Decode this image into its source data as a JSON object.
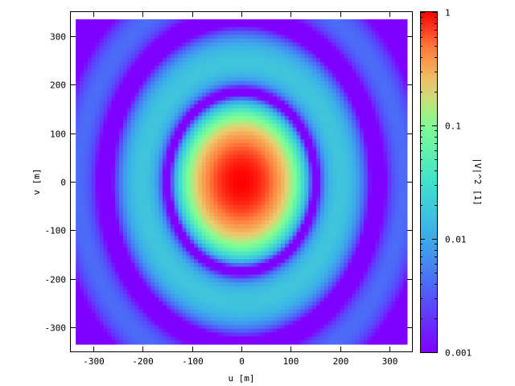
{
  "chart_data": {
    "type": "heatmap",
    "title": "",
    "xlabel": "u [m]",
    "ylabel": "v [m]",
    "colorbar_label": "|V|^2 [1]",
    "xlim": [
      -345,
      345
    ],
    "ylim": [
      -350,
      350
    ],
    "data_extent": {
      "x": [
        -335,
        335
      ],
      "y": [
        -335,
        335
      ]
    },
    "x_ticks": [
      -300,
      -200,
      -100,
      0,
      100,
      200,
      300
    ],
    "y_ticks": [
      -300,
      -200,
      -100,
      0,
      100,
      200,
      300
    ],
    "x_tick_labels": [
      "-300",
      "-200",
      "-100",
      "0",
      "100",
      "200",
      "300"
    ],
    "y_tick_labels": [
      "-300",
      "-200",
      "-100",
      "0",
      "100",
      "200",
      "300"
    ],
    "colorbar": {
      "scale": "log",
      "range": [
        0.001,
        1
      ],
      "ticks": [
        0.001,
        0.01,
        0.1,
        1
      ],
      "tick_labels": [
        "0.001",
        "0.01",
        "0.1",
        "1"
      ],
      "colormap": "rainbow (violet to red)"
    },
    "features": {
      "shape": "elliptical rings centered at origin",
      "central_peak_value": 1,
      "semi_axis_x_first_null": 150,
      "semi_axis_y_first_null": 185,
      "ring_levels": [
        1,
        0.02,
        0.006,
        0.003
      ],
      "grid": false
    }
  }
}
